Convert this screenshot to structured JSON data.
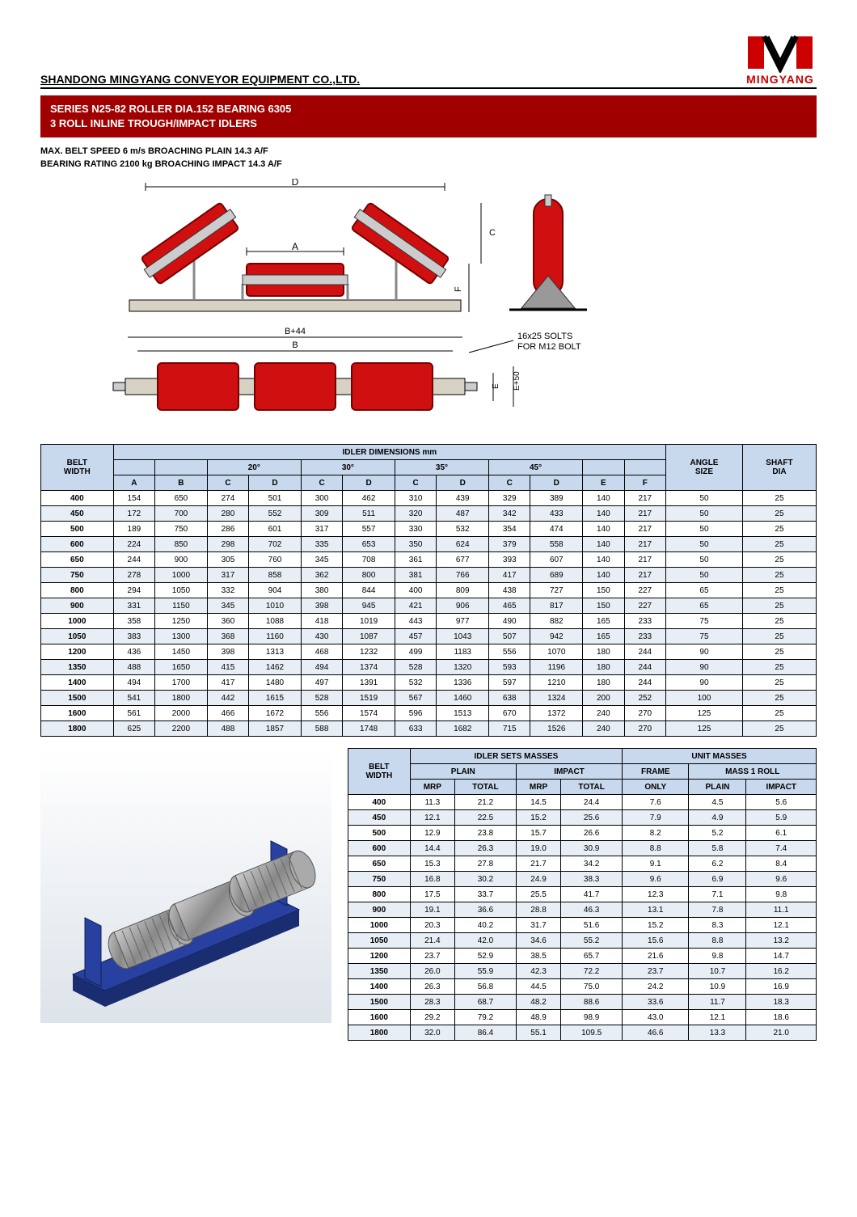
{
  "header": {
    "company": "SHANDONG MINGYANG CONVEYOR EQUIPMENT CO.,LTD.",
    "brand": "MINGYANG"
  },
  "title": {
    "line1": "SERIES N25-82 ROLLER DIA.152 BEARING 6305",
    "line2": "3 ROLL INLINE TROUGH/IMPACT IDLERS"
  },
  "specs": {
    "line1": "MAX. BELT SPEED 6 m/s BROACHING PLAIN 14.3 A/F",
    "line2": "BEARING RATING 2100 kg BROACHING IMPACT 14.3 A/F"
  },
  "diagram": {
    "colors": {
      "roller": "#d01010",
      "roller_stroke": "#700",
      "base": "#d8d2c4",
      "support": "#888",
      "dim": "#000",
      "bg": "#fff"
    },
    "labels": {
      "D": "D",
      "A": "A",
      "B44": "B+44",
      "B": "B",
      "C": "C",
      "F": "F",
      "E": "E",
      "E50": "E+50",
      "slots": "16x25 SOLTS",
      "bolt": "FOR M12 BOLT"
    }
  },
  "table1": {
    "title": "IDLER DIMENSIONS mm",
    "groupHeaders": [
      "BELT WIDTH",
      "",
      "",
      "20°",
      "",
      "30°",
      "",
      "35°",
      "",
      "45°",
      "",
      "",
      "",
      "ANGLE SIZE",
      "SHAFT DIA"
    ],
    "cols": [
      "A",
      "B",
      "C",
      "D",
      "C",
      "D",
      "C",
      "D",
      "C",
      "D",
      "E",
      "F"
    ],
    "rows": [
      [
        "400",
        "154",
        "650",
        "274",
        "501",
        "300",
        "462",
        "310",
        "439",
        "329",
        "389",
        "140",
        "217",
        "50",
        "25"
      ],
      [
        "450",
        "172",
        "700",
        "280",
        "552",
        "309",
        "511",
        "320",
        "487",
        "342",
        "433",
        "140",
        "217",
        "50",
        "25"
      ],
      [
        "500",
        "189",
        "750",
        "286",
        "601",
        "317",
        "557",
        "330",
        "532",
        "354",
        "474",
        "140",
        "217",
        "50",
        "25"
      ],
      [
        "600",
        "224",
        "850",
        "298",
        "702",
        "335",
        "653",
        "350",
        "624",
        "379",
        "558",
        "140",
        "217",
        "50",
        "25"
      ],
      [
        "650",
        "244",
        "900",
        "305",
        "760",
        "345",
        "708",
        "361",
        "677",
        "393",
        "607",
        "140",
        "217",
        "50",
        "25"
      ],
      [
        "750",
        "278",
        "1000",
        "317",
        "858",
        "362",
        "800",
        "381",
        "766",
        "417",
        "689",
        "140",
        "217",
        "50",
        "25"
      ],
      [
        "800",
        "294",
        "1050",
        "332",
        "904",
        "380",
        "844",
        "400",
        "809",
        "438",
        "727",
        "150",
        "227",
        "65",
        "25"
      ],
      [
        "900",
        "331",
        "1150",
        "345",
        "1010",
        "398",
        "945",
        "421",
        "906",
        "465",
        "817",
        "150",
        "227",
        "65",
        "25"
      ],
      [
        "1000",
        "358",
        "1250",
        "360",
        "1088",
        "418",
        "1019",
        "443",
        "977",
        "490",
        "882",
        "165",
        "233",
        "75",
        "25"
      ],
      [
        "1050",
        "383",
        "1300",
        "368",
        "1160",
        "430",
        "1087",
        "457",
        "1043",
        "507",
        "942",
        "165",
        "233",
        "75",
        "25"
      ],
      [
        "1200",
        "436",
        "1450",
        "398",
        "1313",
        "468",
        "1232",
        "499",
        "1183",
        "556",
        "1070",
        "180",
        "244",
        "90",
        "25"
      ],
      [
        "1350",
        "488",
        "1650",
        "415",
        "1462",
        "494",
        "1374",
        "528",
        "1320",
        "593",
        "1196",
        "180",
        "244",
        "90",
        "25"
      ],
      [
        "1400",
        "494",
        "1700",
        "417",
        "1480",
        "497",
        "1391",
        "532",
        "1336",
        "597",
        "1210",
        "180",
        "244",
        "90",
        "25"
      ],
      [
        "1500",
        "541",
        "1800",
        "442",
        "1615",
        "528",
        "1519",
        "567",
        "1460",
        "638",
        "1324",
        "200",
        "252",
        "100",
        "25"
      ],
      [
        "1600",
        "561",
        "2000",
        "466",
        "1672",
        "556",
        "1574",
        "596",
        "1513",
        "670",
        "1372",
        "240",
        "270",
        "125",
        "25"
      ],
      [
        "1800",
        "625",
        "2200",
        "488",
        "1857",
        "588",
        "1748",
        "633",
        "1682",
        "715",
        "1526",
        "240",
        "270",
        "125",
        "25"
      ]
    ]
  },
  "table2": {
    "h1a": "IDLER SETS MASSES",
    "h1b": "UNIT MASSES",
    "h2": [
      "BELT WIDTH",
      "PLAIN",
      "IMPACT",
      "FRAME",
      "MASS 1 ROLL"
    ],
    "h3": [
      "MRP",
      "TOTAL",
      "MRP",
      "TOTAL",
      "ONLY",
      "PLAIN",
      "IMPACT"
    ],
    "rows": [
      [
        "400",
        "11.3",
        "21.2",
        "14.5",
        "24.4",
        "7.6",
        "4.5",
        "5.6"
      ],
      [
        "450",
        "12.1",
        "22.5",
        "15.2",
        "25.6",
        "7.9",
        "4.9",
        "5.9"
      ],
      [
        "500",
        "12.9",
        "23.8",
        "15.7",
        "26.6",
        "8.2",
        "5.2",
        "6.1"
      ],
      [
        "600",
        "14.4",
        "26.3",
        "19.0",
        "30.9",
        "8.8",
        "5.8",
        "7.4"
      ],
      [
        "650",
        "15.3",
        "27.8",
        "21.7",
        "34.2",
        "9.1",
        "6.2",
        "8.4"
      ],
      [
        "750",
        "16.8",
        "30.2",
        "24.9",
        "38.3",
        "9.6",
        "6.9",
        "9.6"
      ],
      [
        "800",
        "17.5",
        "33.7",
        "25.5",
        "41.7",
        "12.3",
        "7.1",
        "9.8"
      ],
      [
        "900",
        "19.1",
        "36.6",
        "28.8",
        "46.3",
        "13.1",
        "7.8",
        "11.1"
      ],
      [
        "1000",
        "20.3",
        "40.2",
        "31.7",
        "51.6",
        "15.2",
        "8.3",
        "12.1"
      ],
      [
        "1050",
        "21.4",
        "42.0",
        "34.6",
        "55.2",
        "15.6",
        "8.8",
        "13.2"
      ],
      [
        "1200",
        "23.7",
        "52.9",
        "38.5",
        "65.7",
        "21.6",
        "9.8",
        "14.7"
      ],
      [
        "1350",
        "26.0",
        "55.9",
        "42.3",
        "72.2",
        "23.7",
        "10.7",
        "16.2"
      ],
      [
        "1400",
        "26.3",
        "56.8",
        "44.5",
        "75.0",
        "24.2",
        "10.9",
        "16.9"
      ],
      [
        "1500",
        "28.3",
        "68.7",
        "48.2",
        "88.6",
        "33.6",
        "11.7",
        "18.3"
      ],
      [
        "1600",
        "29.2",
        "79.2",
        "48.9",
        "98.9",
        "43.0",
        "12.1",
        "18.6"
      ],
      [
        "1800",
        "32.0",
        "86.4",
        "55.1",
        "109.5",
        "46.6",
        "13.3",
        "21.0"
      ]
    ]
  }
}
